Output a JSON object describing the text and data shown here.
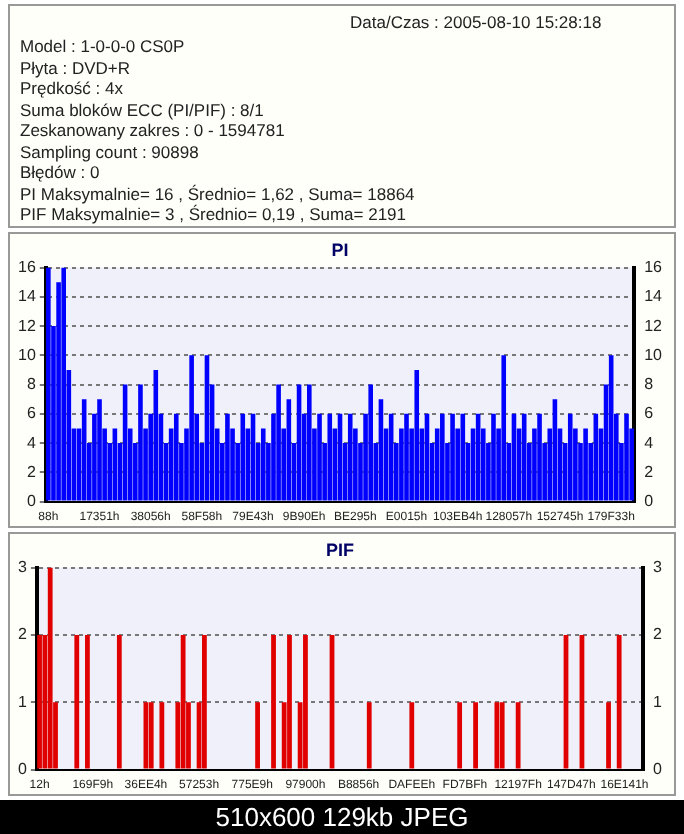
{
  "chart_data": [
    {
      "type": "other",
      "annotations": [
        "Data/Czas : 2005-08-10 15:28:18",
        "Model : 1-0-0-0 CS0P",
        "Płyta : DVD+R",
        "Prędkość : 4x",
        "Suma bloków ECC (PI/PIF) : 8/1",
        "Zeskanowany zakres : 0 - 1594781",
        "Sampling count : 90898",
        "Błędów : 0",
        "PI Maksymalnie= 16 , Średnio= 1,62 , Suma= 18864",
        "PIF Maksymalnie= 3 , Średnio= 0,19 , Suma= 2191"
      ]
    },
    {
      "type": "bar",
      "title": "PI",
      "color": "#0000ff",
      "grid": "y",
      "ylim": [
        0,
        16
      ],
      "yticks": [
        0,
        2,
        4,
        6,
        8,
        10,
        12,
        14,
        16
      ],
      "y2lim": [
        0,
        16
      ],
      "y2ticks": [
        0,
        2,
        4,
        6,
        8,
        10,
        12,
        14,
        16
      ],
      "categories": [
        "88h",
        null,
        null,
        null,
        null,
        null,
        null,
        null,
        null,
        null,
        "17351h",
        null,
        null,
        null,
        null,
        null,
        null,
        null,
        null,
        null,
        "38056h",
        null,
        null,
        null,
        null,
        null,
        null,
        null,
        null,
        null,
        "58F58h",
        null,
        null,
        null,
        null,
        null,
        null,
        null,
        null,
        null,
        "79E43h",
        null,
        null,
        null,
        null,
        null,
        null,
        null,
        null,
        null,
        "9B90Eh",
        null,
        null,
        null,
        null,
        null,
        null,
        null,
        null,
        null,
        "BE295h",
        null,
        null,
        null,
        null,
        null,
        null,
        null,
        null,
        null,
        "E0015h",
        null,
        null,
        null,
        null,
        null,
        null,
        null,
        null,
        null,
        "103EB4h",
        null,
        null,
        null,
        null,
        null,
        null,
        null,
        null,
        null,
        "128057h",
        null,
        null,
        null,
        null,
        null,
        null,
        null,
        null,
        null,
        "152745h",
        null,
        null,
        null,
        null,
        null,
        null,
        null,
        null,
        null,
        "179F33h",
        null,
        null,
        null,
        null
      ],
      "values": [
        16,
        12,
        15,
        16,
        9,
        5,
        5,
        7,
        4,
        6,
        7,
        5,
        4,
        5,
        4,
        8,
        5,
        4,
        8,
        5,
        6,
        9,
        6,
        4,
        5,
        6,
        4,
        5,
        10,
        6,
        4,
        10,
        8,
        5,
        4,
        6,
        5,
        4,
        6,
        5,
        6,
        4,
        5,
        4,
        6,
        8,
        5,
        7,
        4,
        8,
        6,
        8,
        5,
        6,
        4,
        6,
        5,
        6,
        4,
        6,
        5,
        4,
        6,
        8,
        4,
        7,
        5,
        6,
        4,
        5,
        6,
        5,
        9,
        5,
        6,
        4,
        5,
        6,
        4,
        6,
        5,
        6,
        4,
        5,
        6,
        5,
        4,
        6,
        5,
        10,
        4,
        6,
        5,
        6,
        4,
        5,
        6,
        4,
        5,
        7,
        5,
        4,
        6,
        5,
        4,
        5,
        4,
        6,
        5,
        8,
        10,
        6,
        4,
        6,
        5
      ]
    },
    {
      "type": "bar",
      "title": "PIF",
      "color": "#e00000",
      "grid": "y",
      "ylim": [
        0,
        3
      ],
      "yticks": [
        0,
        1,
        2,
        3
      ],
      "y2lim": [
        0,
        3
      ],
      "y2ticks": [
        0,
        1,
        2,
        3
      ],
      "annotations": [
        "510x600 129kb JPEG"
      ],
      "categories": [
        "12h",
        null,
        null,
        null,
        null,
        null,
        null,
        null,
        null,
        null,
        "169F9h",
        null,
        null,
        null,
        null,
        null,
        null,
        null,
        null,
        null,
        "36EE4h",
        null,
        null,
        null,
        null,
        null,
        null,
        null,
        null,
        null,
        "57253h",
        null,
        null,
        null,
        null,
        null,
        null,
        null,
        null,
        null,
        "775E9h",
        null,
        null,
        null,
        null,
        null,
        null,
        null,
        null,
        null,
        "97900h",
        null,
        null,
        null,
        null,
        null,
        null,
        null,
        null,
        null,
        "B8856h",
        null,
        null,
        null,
        null,
        null,
        null,
        null,
        null,
        null,
        "DAFEEh",
        null,
        null,
        null,
        null,
        null,
        null,
        null,
        null,
        null,
        "FD7BFh",
        null,
        null,
        null,
        null,
        null,
        null,
        null,
        null,
        null,
        "12197Fh",
        null,
        null,
        null,
        null,
        null,
        null,
        null,
        null,
        null,
        "147D47h",
        null,
        null,
        null,
        null,
        null,
        null,
        null,
        null,
        null,
        "16E141h",
        null,
        null,
        null
      ],
      "values": [
        2,
        2,
        3,
        1,
        0,
        0,
        0,
        2,
        0,
        2,
        0,
        0,
        0,
        0,
        0,
        2,
        0,
        0,
        0,
        0,
        1,
        1,
        0,
        1,
        0,
        0,
        1,
        2,
        1,
        0,
        1,
        2,
        0,
        0,
        0,
        0,
        0,
        0,
        0,
        0,
        0,
        1,
        0,
        0,
        2,
        0,
        1,
        2,
        0,
        1,
        2,
        0,
        0,
        0,
        0,
        2,
        0,
        0,
        0,
        0,
        0,
        0,
        1,
        0,
        0,
        0,
        0,
        0,
        0,
        0,
        1,
        0,
        0,
        0,
        0,
        0,
        0,
        0,
        0,
        1,
        0,
        0,
        1,
        0,
        0,
        0,
        1,
        1,
        0,
        0,
        1,
        0,
        0,
        0,
        0,
        0,
        0,
        0,
        0,
        2,
        0,
        0,
        2,
        0,
        0,
        0,
        0,
        1,
        0,
        2,
        0,
        0,
        0,
        0
      ]
    }
  ]
}
